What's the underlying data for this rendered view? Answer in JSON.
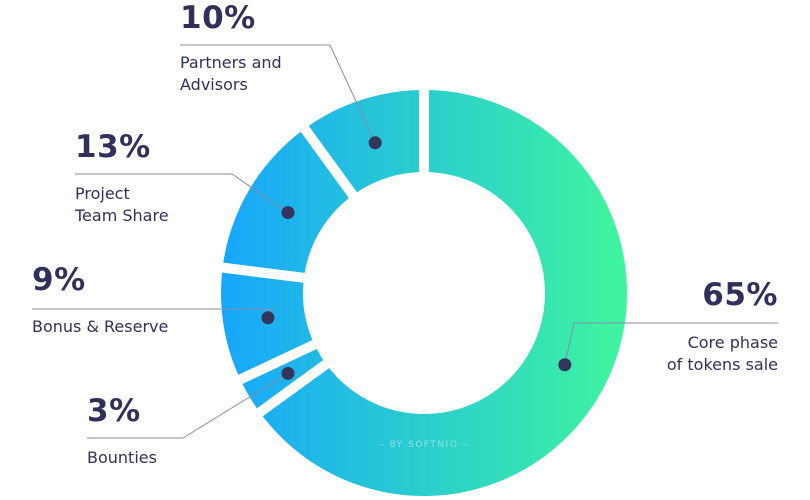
{
  "chart_data": {
    "type": "pie",
    "donut": true,
    "categories": [
      "Core phase of tokens sale",
      "Bounties",
      "Bonus & Reserve",
      "Project Team Share",
      "Partners and Advisors"
    ],
    "values": [
      65,
      3,
      9,
      13,
      10
    ],
    "labels": [
      {
        "pct": "65%",
        "line1": "Core phase",
        "line2": "of tokens sale"
      },
      {
        "pct": "3%",
        "line1": "Bounties",
        "line2": ""
      },
      {
        "pct": "9%",
        "line1": "Bonus & Reserve",
        "line2": ""
      },
      {
        "pct": "13%",
        "line1": "Project",
        "line2": "Team Share"
      },
      {
        "pct": "10%",
        "line1": "Partners and",
        "line2": "Advisors"
      }
    ],
    "watermark": "– BY SOFTNIO –",
    "colors": {
      "gradient_start": "#17a6fc",
      "gradient_end": "#3ff59e",
      "text": "#30305a",
      "dot": "#33355c",
      "line": "#8a8aa6"
    }
  }
}
